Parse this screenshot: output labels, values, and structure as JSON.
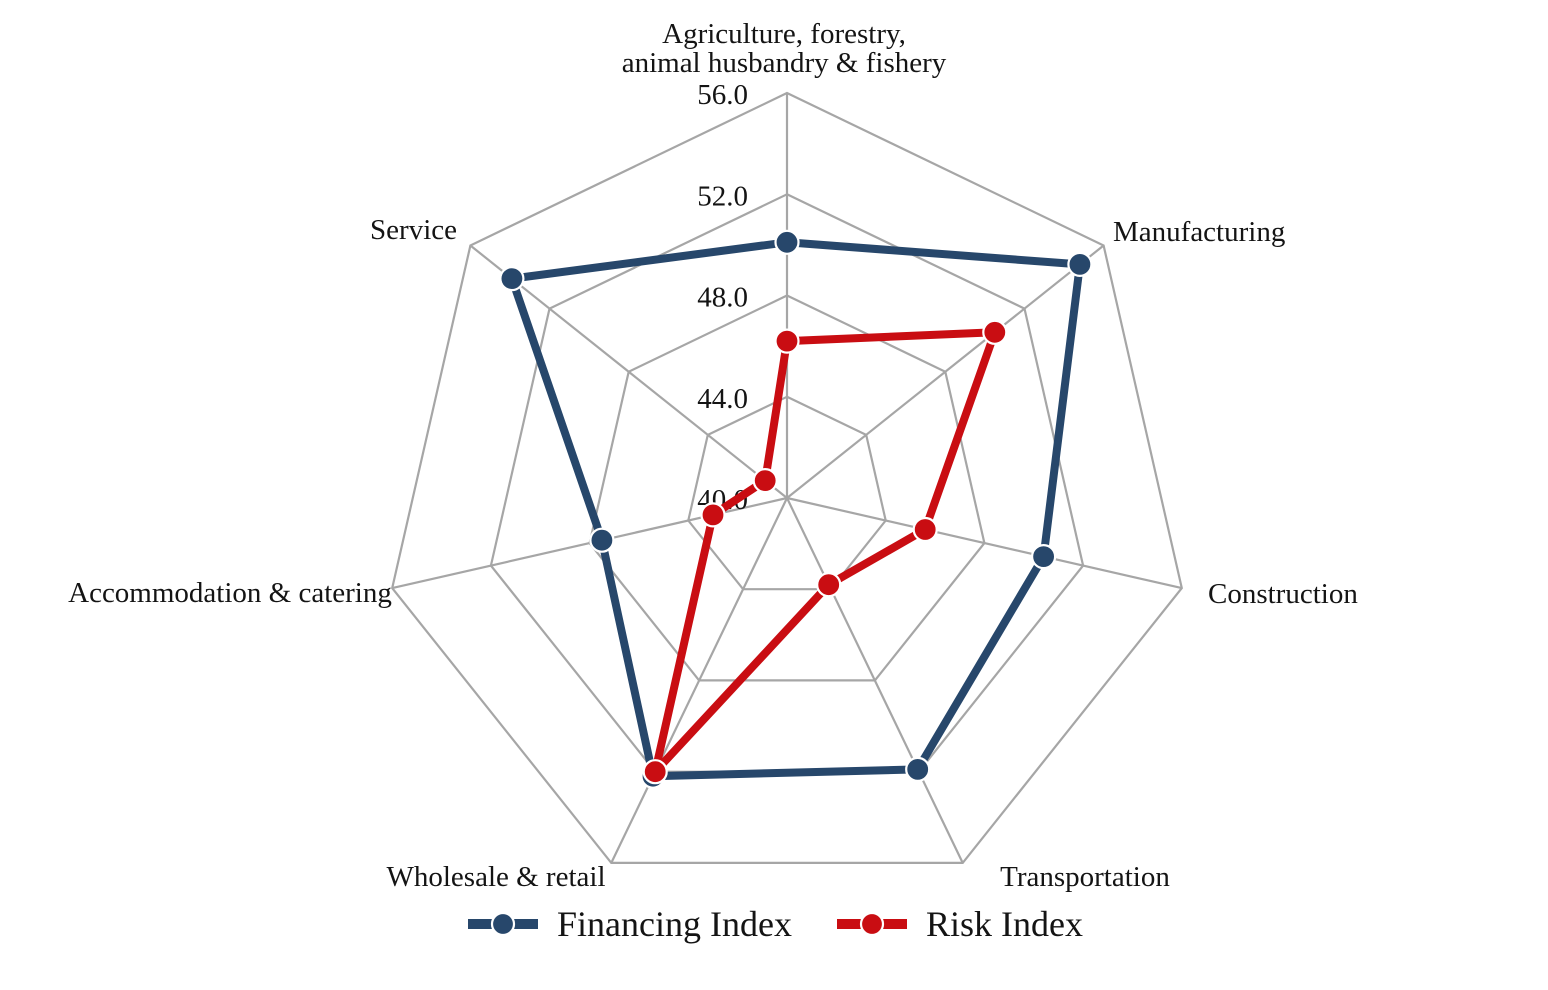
{
  "chart_data": {
    "type": "radar",
    "title": "",
    "categories": [
      "Agriculture, forestry,\nanimal husbandry & fishery",
      "Manufacturing",
      "Construction",
      "Transportation",
      "Wholesale & retail",
      "Accommodation & catering",
      "Service"
    ],
    "series": [
      {
        "name": "Financing Index",
        "color": "#27476B",
        "values": [
          50.1,
          54.8,
          50.4,
          51.9,
          52.2,
          47.5,
          53.9
        ]
      },
      {
        "name": "Risk Index",
        "color": "#C90D12",
        "values": [
          46.2,
          50.5,
          45.6,
          43.8,
          52.0,
          43.0,
          41.1
        ]
      }
    ],
    "radial_axis": {
      "min": 40,
      "max": 56,
      "step": 4,
      "tick_labels": [
        "40.0",
        "44.0",
        "48.0",
        "52.0",
        "56.0"
      ]
    },
    "grid_color": "#A6A6A6",
    "grid_on": true,
    "legend_position": "bottom"
  }
}
